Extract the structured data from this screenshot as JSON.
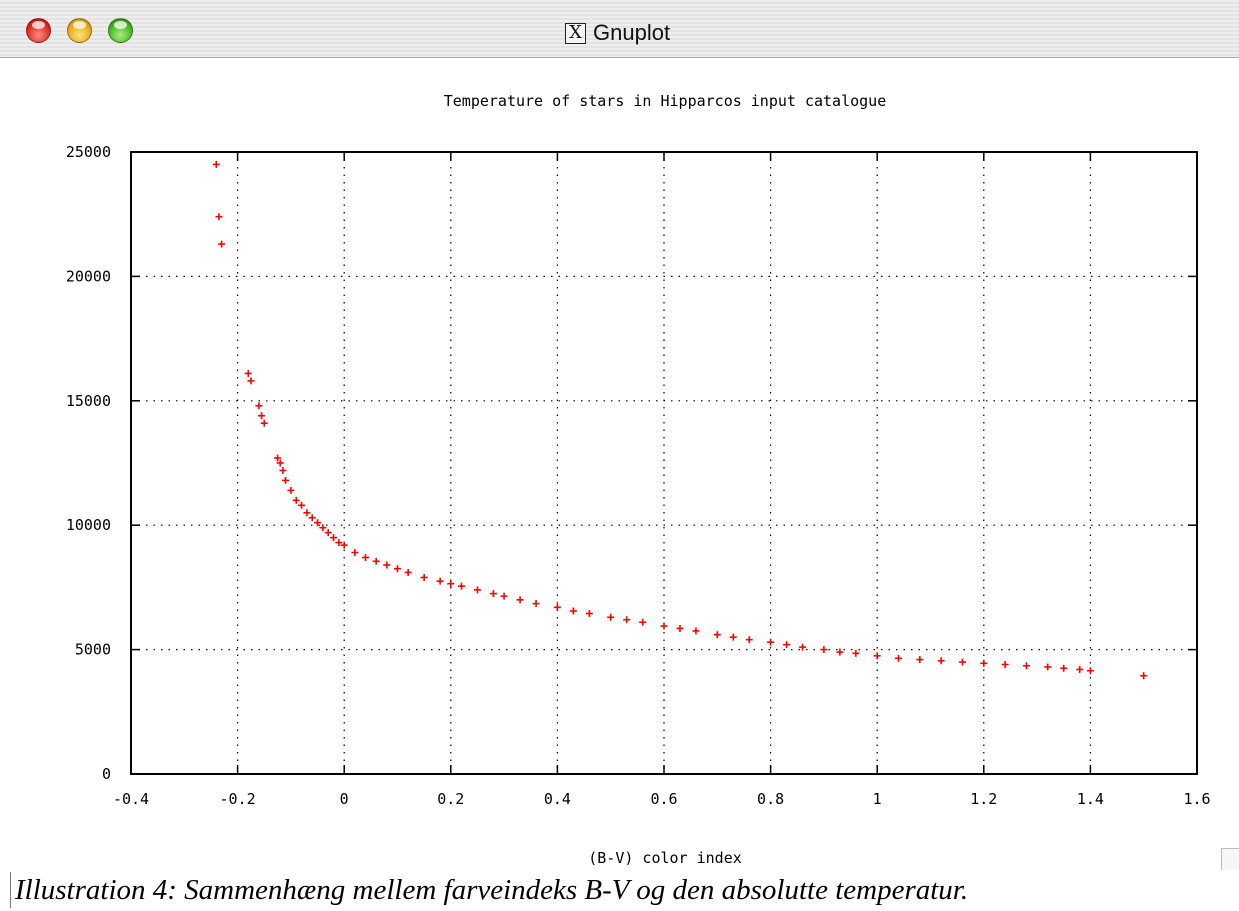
{
  "window": {
    "title": "Gnuplot",
    "title_icon": "x11-icon",
    "title_icon_glyph": "X",
    "controls": [
      "close",
      "minimize",
      "zoom"
    ]
  },
  "caption": "Illustration 4: Sammenhæng mellem farveindeks B-V og den absolutte temperatur.",
  "colors": {
    "points": "#ff0000",
    "grid": "#000000",
    "titlebar": "#e8e8e8"
  },
  "chart_data": {
    "type": "scatter",
    "title": "Temperature of stars in Hipparcos input catalogue",
    "xlabel": "(B-V) color index",
    "ylabel": "",
    "xlim": [
      -0.4,
      1.6
    ],
    "ylim": [
      0,
      25000
    ],
    "xticks": [
      "-0.4",
      "-0.2",
      "0",
      "0.2",
      "0.4",
      "0.6",
      "0.8",
      "1",
      "1.2",
      "1.4",
      "1.6"
    ],
    "yticks": [
      "0",
      "5000",
      "10000",
      "15000",
      "20000",
      "25000"
    ],
    "grid": true,
    "legend": "none",
    "x": [
      -0.24,
      -0.235,
      -0.23,
      -0.18,
      -0.175,
      -0.16,
      -0.155,
      -0.15,
      -0.125,
      -0.12,
      -0.115,
      -0.11,
      -0.1,
      -0.09,
      -0.08,
      -0.07,
      -0.06,
      -0.05,
      -0.04,
      -0.03,
      -0.02,
      -0.01,
      0.0,
      0.02,
      0.04,
      0.06,
      0.08,
      0.1,
      0.12,
      0.15,
      0.18,
      0.2,
      0.22,
      0.25,
      0.28,
      0.3,
      0.33,
      0.36,
      0.4,
      0.43,
      0.46,
      0.5,
      0.53,
      0.56,
      0.6,
      0.63,
      0.66,
      0.7,
      0.73,
      0.76,
      0.8,
      0.83,
      0.86,
      0.9,
      0.93,
      0.96,
      1.0,
      1.04,
      1.08,
      1.12,
      1.16,
      1.2,
      1.24,
      1.28,
      1.32,
      1.35,
      1.38,
      1.4,
      1.5
    ],
    "y": [
      24500,
      22400,
      21300,
      16100,
      15800,
      14800,
      14400,
      14100,
      12700,
      12500,
      12200,
      11800,
      11400,
      11000,
      10800,
      10500,
      10300,
      10100,
      9900,
      9700,
      9500,
      9300,
      9200,
      8900,
      8700,
      8550,
      8400,
      8250,
      8100,
      7900,
      7750,
      7650,
      7550,
      7400,
      7250,
      7150,
      7000,
      6850,
      6700,
      6550,
      6450,
      6300,
      6200,
      6100,
      5950,
      5850,
      5750,
      5600,
      5500,
      5400,
      5300,
      5200,
      5100,
      5000,
      4900,
      4850,
      4750,
      4650,
      4600,
      4550,
      4500,
      4450,
      4400,
      4350,
      4300,
      4250,
      4200,
      4150,
      3950
    ]
  }
}
